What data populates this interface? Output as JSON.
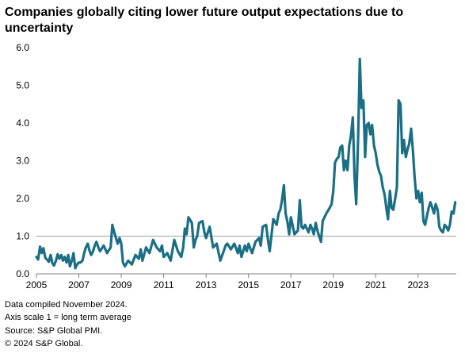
{
  "title": "Companies globally  citing lower future output expectations due to uncertainty",
  "notes": [
    "Data compiled November 2024.",
    "Axis scale 1 = long term average",
    "Source: S&P Global PMI.",
    "© 2024 S&P Global."
  ],
  "chart_data": {
    "type": "line",
    "title": "Companies globally  citing lower future output expectations due to uncertainty",
    "xlabel": "",
    "ylabel": "",
    "xlim": [
      2005.0,
      2024.8
    ],
    "ylim": [
      0,
      6
    ],
    "yticks": [
      "0.0",
      "1.0",
      "2.0",
      "3.0",
      "4.0",
      "5.0",
      "6.0"
    ],
    "xticks": [
      "2005",
      "2007",
      "2009",
      "2011",
      "2013",
      "2015",
      "2017",
      "2019",
      "2021",
      "2023"
    ],
    "xtick_values": [
      2005,
      2007,
      2009,
      2011,
      2013,
      2015,
      2017,
      2019,
      2021,
      2023
    ],
    "reference_line": 1.0,
    "grid": false,
    "colors": {
      "line": "#1b6f85",
      "axis": "#808080",
      "reference": "#a0a0a0"
    },
    "series": [
      {
        "x": [
          2005.0,
          2005.08,
          2005.17,
          2005.25,
          2005.33,
          2005.42,
          2005.5,
          2005.58,
          2005.67,
          2005.75,
          2005.83,
          2005.92,
          2006.0,
          2006.08,
          2006.17,
          2006.25,
          2006.33,
          2006.42,
          2006.5,
          2006.58,
          2006.67,
          2006.75,
          2006.83,
          2006.92,
          2007.0,
          2007.08,
          2007.17,
          2007.25,
          2007.33,
          2007.42,
          2007.5,
          2007.58,
          2007.67,
          2007.75,
          2007.83,
          2007.92,
          2008.0,
          2008.17,
          2008.33,
          2008.5,
          2008.58,
          2008.67,
          2008.83,
          2008.92,
          2009.0,
          2009.08,
          2009.17,
          2009.33,
          2009.5,
          2009.67,
          2009.83,
          2009.92,
          2010.0,
          2010.17,
          2010.33,
          2010.5,
          2010.67,
          2010.83,
          2010.92,
          2011.0,
          2011.17,
          2011.33,
          2011.5,
          2011.67,
          2011.83,
          2011.92,
          2012.0,
          2012.08,
          2012.17,
          2012.33,
          2012.42,
          2012.5,
          2012.58,
          2012.67,
          2012.83,
          2012.92,
          2013.0,
          2013.17,
          2013.33,
          2013.5,
          2013.67,
          2013.83,
          2013.92,
          2014.0,
          2014.17,
          2014.33,
          2014.5,
          2014.58,
          2014.67,
          2014.83,
          2014.92,
          2015.0,
          2015.17,
          2015.33,
          2015.5,
          2015.58,
          2015.67,
          2015.83,
          2015.92,
          2016.0,
          2016.17,
          2016.33,
          2016.42,
          2016.5,
          2016.58,
          2016.67,
          2016.75,
          2016.83,
          2016.92,
          2017.0,
          2017.17,
          2017.33,
          2017.42,
          2017.5,
          2017.58,
          2017.67,
          2017.83,
          2017.92,
          2018.0,
          2018.08,
          2018.17,
          2018.25,
          2018.33,
          2018.42,
          2018.5,
          2018.67,
          2018.83,
          2018.92,
          2019.0,
          2019.08,
          2019.17,
          2019.25,
          2019.33,
          2019.42,
          2019.5,
          2019.58,
          2019.67,
          2019.75,
          2019.83,
          2019.92,
          2020.0,
          2020.08,
          2020.17,
          2020.25,
          2020.33,
          2020.42,
          2020.5,
          2020.58,
          2020.67,
          2020.75,
          2020.83,
          2020.92,
          2021.0,
          2021.08,
          2021.17,
          2021.25,
          2021.33,
          2021.42,
          2021.5,
          2021.58,
          2021.67,
          2021.75,
          2021.83,
          2021.92,
          2022.0,
          2022.08,
          2022.17,
          2022.25,
          2022.33,
          2022.42,
          2022.5,
          2022.58,
          2022.67,
          2022.75,
          2022.83,
          2022.92,
          2023.0,
          2023.08,
          2023.17,
          2023.25,
          2023.33,
          2023.42,
          2023.5,
          2023.58,
          2023.67,
          2023.75,
          2023.83,
          2023.92,
          2024.0,
          2024.08,
          2024.17,
          2024.25,
          2024.33,
          2024.42,
          2024.5,
          2024.58,
          2024.67,
          2024.75
        ],
        "values": [
          0.45,
          0.38,
          0.72,
          0.55,
          0.68,
          0.42,
          0.38,
          0.32,
          0.5,
          0.28,
          0.22,
          0.35,
          0.52,
          0.4,
          0.5,
          0.35,
          0.45,
          0.3,
          0.5,
          0.2,
          0.35,
          0.55,
          0.15,
          0.25,
          0.3,
          0.3,
          0.35,
          0.55,
          0.7,
          0.8,
          0.62,
          0.5,
          0.6,
          0.75,
          0.85,
          0.7,
          0.6,
          0.75,
          0.55,
          0.7,
          1.3,
          1.1,
          0.8,
          0.95,
          0.8,
          0.3,
          0.2,
          0.35,
          0.25,
          0.5,
          0.4,
          0.65,
          0.35,
          0.7,
          0.55,
          0.9,
          0.7,
          0.6,
          0.75,
          0.45,
          0.55,
          0.35,
          0.9,
          0.6,
          0.45,
          0.7,
          1.2,
          1.05,
          1.5,
          1.35,
          0.7,
          0.9,
          1.0,
          1.35,
          1.4,
          1.1,
          0.95,
          1.25,
          0.7,
          0.8,
          0.35,
          0.6,
          0.75,
          0.8,
          0.65,
          0.8,
          0.55,
          0.75,
          0.45,
          0.75,
          0.6,
          0.8,
          0.55,
          0.85,
          0.95,
          0.75,
          1.25,
          1.3,
          0.9,
          0.6,
          1.45,
          1.3,
          1.6,
          1.7,
          1.95,
          2.35,
          1.6,
          1.4,
          1.05,
          1.5,
          1.05,
          1.15,
          1.95,
          1.25,
          1.2,
          1.3,
          1.1,
          1.3,
          1.2,
          1.05,
          1.35,
          1.15,
          1.0,
          0.85,
          1.4,
          1.6,
          1.75,
          1.85,
          2.2,
          2.95,
          3.05,
          3.1,
          3.35,
          3.4,
          2.75,
          3.0,
          2.75,
          3.4,
          3.65,
          4.15,
          2.6,
          1.85,
          3.6,
          5.7,
          4.4,
          4.6,
          3.1,
          3.95,
          4.0,
          3.7,
          3.95,
          3.4,
          3.2,
          2.9,
          2.7,
          2.6,
          2.3,
          2.1,
          1.75,
          1.45,
          2.2,
          1.75,
          1.7,
          2.0,
          2.3,
          4.6,
          4.5,
          3.2,
          3.55,
          3.1,
          3.3,
          3.45,
          3.85,
          3.3,
          2.6,
          2.0,
          2.2,
          1.9,
          2.15,
          1.4,
          1.3,
          1.55,
          1.75,
          1.9,
          1.75,
          1.6,
          1.85,
          1.7,
          1.25,
          1.15,
          1.1,
          1.3,
          1.25,
          1.15,
          1.3,
          1.65,
          1.6,
          1.9
        ]
      }
    ]
  }
}
